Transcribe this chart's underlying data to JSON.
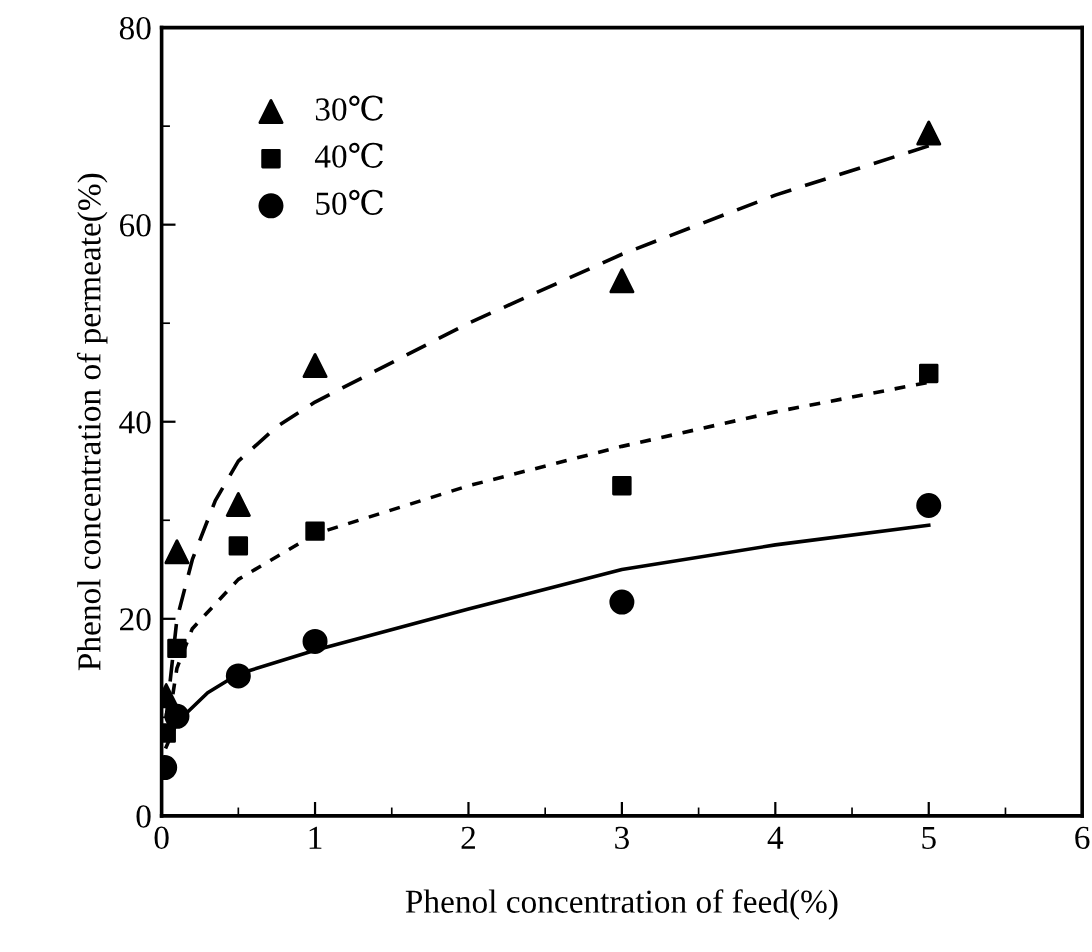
{
  "chart_data": {
    "type": "scatter",
    "xlabel": "Phenol concentration of feed(%)",
    "ylabel": "Phenol concentration of permeate(%)",
    "xlim": [
      0,
      6
    ],
    "ylim": [
      0,
      80
    ],
    "xticks": [
      0,
      1,
      2,
      3,
      4,
      5,
      6
    ],
    "yticks": [
      0,
      20,
      40,
      60,
      80
    ],
    "grid": false,
    "legend": "top left",
    "series": [
      {
        "name": "30℃",
        "marker": "triangle",
        "color": "#000000",
        "x": [
          0.03,
          0.1,
          0.5,
          1,
          3,
          5
        ],
        "values": [
          12.2,
          26.8,
          31.6,
          45.7,
          54.3,
          69.3
        ]
      },
      {
        "name": "40℃",
        "marker": "square",
        "color": "#000000",
        "x": [
          0.03,
          0.1,
          0.5,
          1,
          3,
          5
        ],
        "values": [
          8.4,
          17,
          27.4,
          28.9,
          33.5,
          44.9
        ]
      },
      {
        "name": "50℃",
        "marker": "circle",
        "color": "#000000",
        "x": [
          0.02,
          0.1,
          0.5,
          1,
          3,
          5
        ],
        "values": [
          4.9,
          10.1,
          14.2,
          17.7,
          21.7,
          31.5
        ]
      },
      {
        "type": "line",
        "line_style": "dashed",
        "color": "#000000",
        "x": [
          0.03,
          0.1,
          0.2,
          0.35,
          0.5,
          0.75,
          1,
          2,
          3,
          4,
          5
        ],
        "values": [
          10,
          20,
          26,
          32,
          36,
          39.5,
          42,
          50,
          57,
          63,
          68
        ]
      },
      {
        "type": "line",
        "line_style": "dotted",
        "color": "#000000",
        "x": [
          0.03,
          0.1,
          0.2,
          0.5,
          1,
          2,
          3,
          4,
          5
        ],
        "values": [
          8,
          15,
          19,
          24,
          28.6,
          33.5,
          37.5,
          41,
          44
        ]
      },
      {
        "type": "line",
        "line_style": "solid",
        "color": "#000000",
        "x": [
          0.03,
          0.1,
          0.3,
          0.5,
          1,
          2,
          3,
          4,
          5
        ],
        "values": [
          7,
          9.5,
          12.5,
          14.4,
          16.8,
          21,
          25,
          27.5,
          29.5
        ]
      }
    ]
  }
}
